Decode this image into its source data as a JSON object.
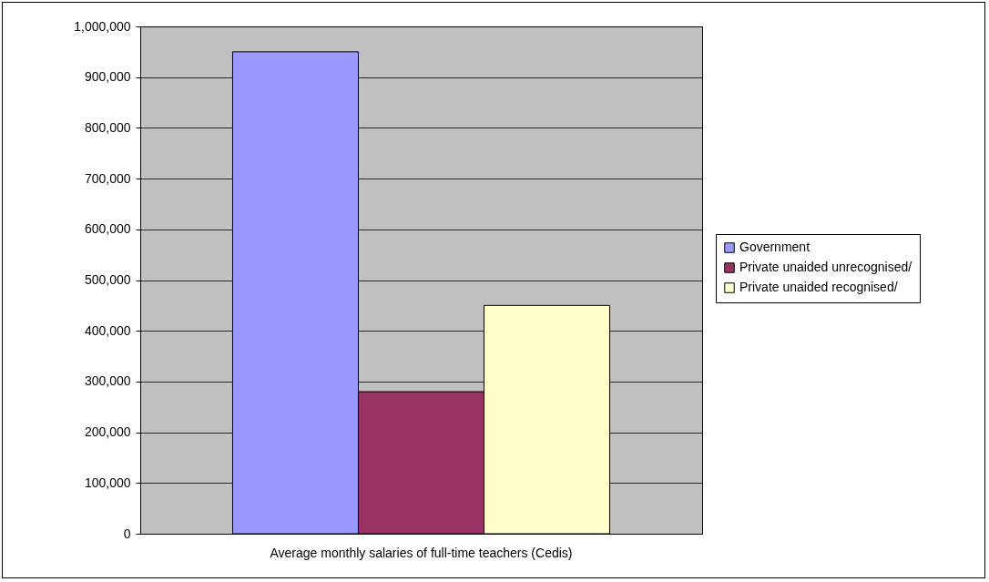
{
  "chart_data": {
    "type": "bar",
    "categories": [
      "Average monthly salaries of full-time teachers (Cedis)"
    ],
    "series": [
      {
        "name": "Government",
        "color": "#9999ff",
        "values": [
          950000
        ]
      },
      {
        "name": "Private unaided unrecognised/",
        "color": "#993366",
        "values": [
          280000
        ]
      },
      {
        "name": "Private unaided recognised/",
        "color": "#ffffcc",
        "values": [
          450000
        ]
      }
    ],
    "ylim": [
      0,
      1000000
    ],
    "yticks": [
      0,
      {
        "value": 100000,
        "label": "100,000"
      },
      {
        "value": 200000,
        "label": "200,000"
      },
      {
        "value": 300000,
        "label": "300,000"
      },
      {
        "value": 400000,
        "label": "400,000"
      },
      {
        "value": 500000,
        "label": "500,000"
      },
      {
        "value": 600000,
        "label": "600,000"
      },
      {
        "value": 700000,
        "label": "700,000"
      },
      {
        "value": 800000,
        "label": "800,000"
      },
      {
        "value": 900000,
        "label": "900,000"
      },
      {
        "value": 1000000,
        "label": "1,000,000"
      }
    ],
    "grid": "y",
    "legend": "right"
  }
}
